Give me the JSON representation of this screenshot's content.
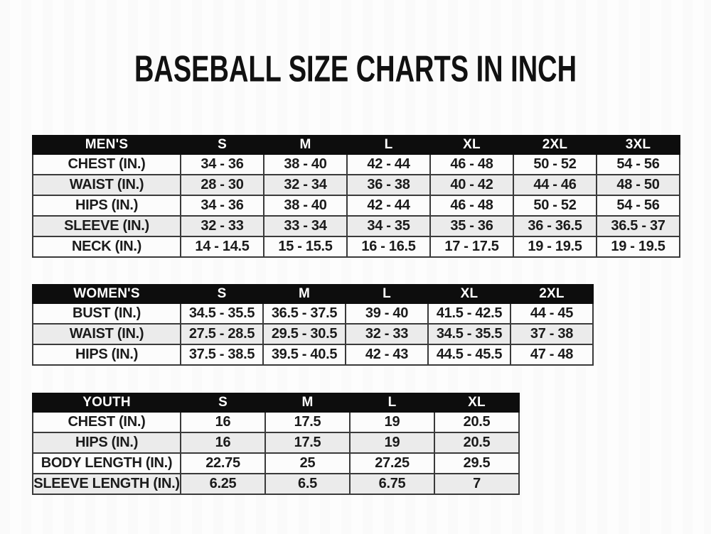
{
  "page_title": "BASEBALL SIZE CHARTS IN INCH",
  "colors": {
    "header_bg": "#0d0d0d",
    "header_text": "#ffffff",
    "row_bg": "#fcfcfc",
    "row_alt_bg": "#ebebeb",
    "border": "#3a3a3a",
    "text": "#1b1b1b"
  },
  "chart_data": [
    {
      "type": "table",
      "title": "MEN'S",
      "header": [
        "MEN'S",
        "S",
        "M",
        "L",
        "XL",
        "2XL",
        "3XL"
      ],
      "rows": [
        [
          "CHEST (IN.)",
          "34 - 36",
          "38 - 40",
          "42 - 44",
          "46 - 48",
          "50 - 52",
          "54 - 56"
        ],
        [
          "WAIST (IN.)",
          "28 - 30",
          "32 - 34",
          "36 - 38",
          "40 - 42",
          "44 - 46",
          "48 - 50"
        ],
        [
          "HIPS (IN.)",
          "34 - 36",
          "38 - 40",
          "42 - 44",
          "46 - 48",
          "50 - 52",
          "54 - 56"
        ],
        [
          "SLEEVE (IN.)",
          "32 - 33",
          "33 - 34",
          "34 - 35",
          "35 - 36",
          "36 - 36.5",
          "36.5 - 37"
        ],
        [
          "NECK (IN.)",
          "14 - 14.5",
          "15 - 15.5",
          "16 - 16.5",
          "17 - 17.5",
          "19 - 19.5",
          "19 - 19.5"
        ]
      ]
    },
    {
      "type": "table",
      "title": "WOMEN'S",
      "header": [
        "WOMEN'S",
        "S",
        "M",
        "L",
        "XL",
        "2XL"
      ],
      "rows": [
        [
          "BUST (IN.)",
          "34.5 - 35.5",
          "36.5 - 37.5",
          "39 - 40",
          "41.5 - 42.5",
          "44 - 45"
        ],
        [
          "WAIST (IN.)",
          "27.5 - 28.5",
          "29.5 - 30.5",
          "32 - 33",
          "34.5 - 35.5",
          "37 - 38"
        ],
        [
          "HIPS (IN.)",
          "37.5 - 38.5",
          "39.5 - 40.5",
          "42 - 43",
          "44.5 - 45.5",
          "47 - 48"
        ]
      ]
    },
    {
      "type": "table",
      "title": "YOUTH",
      "header": [
        "YOUTH",
        "S",
        "M",
        "L",
        "XL"
      ],
      "rows": [
        [
          "CHEST (IN.)",
          "16",
          "17.5",
          "19",
          "20.5"
        ],
        [
          "HIPS (IN.)",
          "16",
          "17.5",
          "19",
          "20.5"
        ],
        [
          "BODY LENGTH (IN.)",
          "22.75",
          "25",
          "27.25",
          "29.5"
        ],
        [
          "SLEEVE LENGTH (IN.)",
          "6.25",
          "6.5",
          "6.75",
          "7"
        ]
      ]
    }
  ]
}
